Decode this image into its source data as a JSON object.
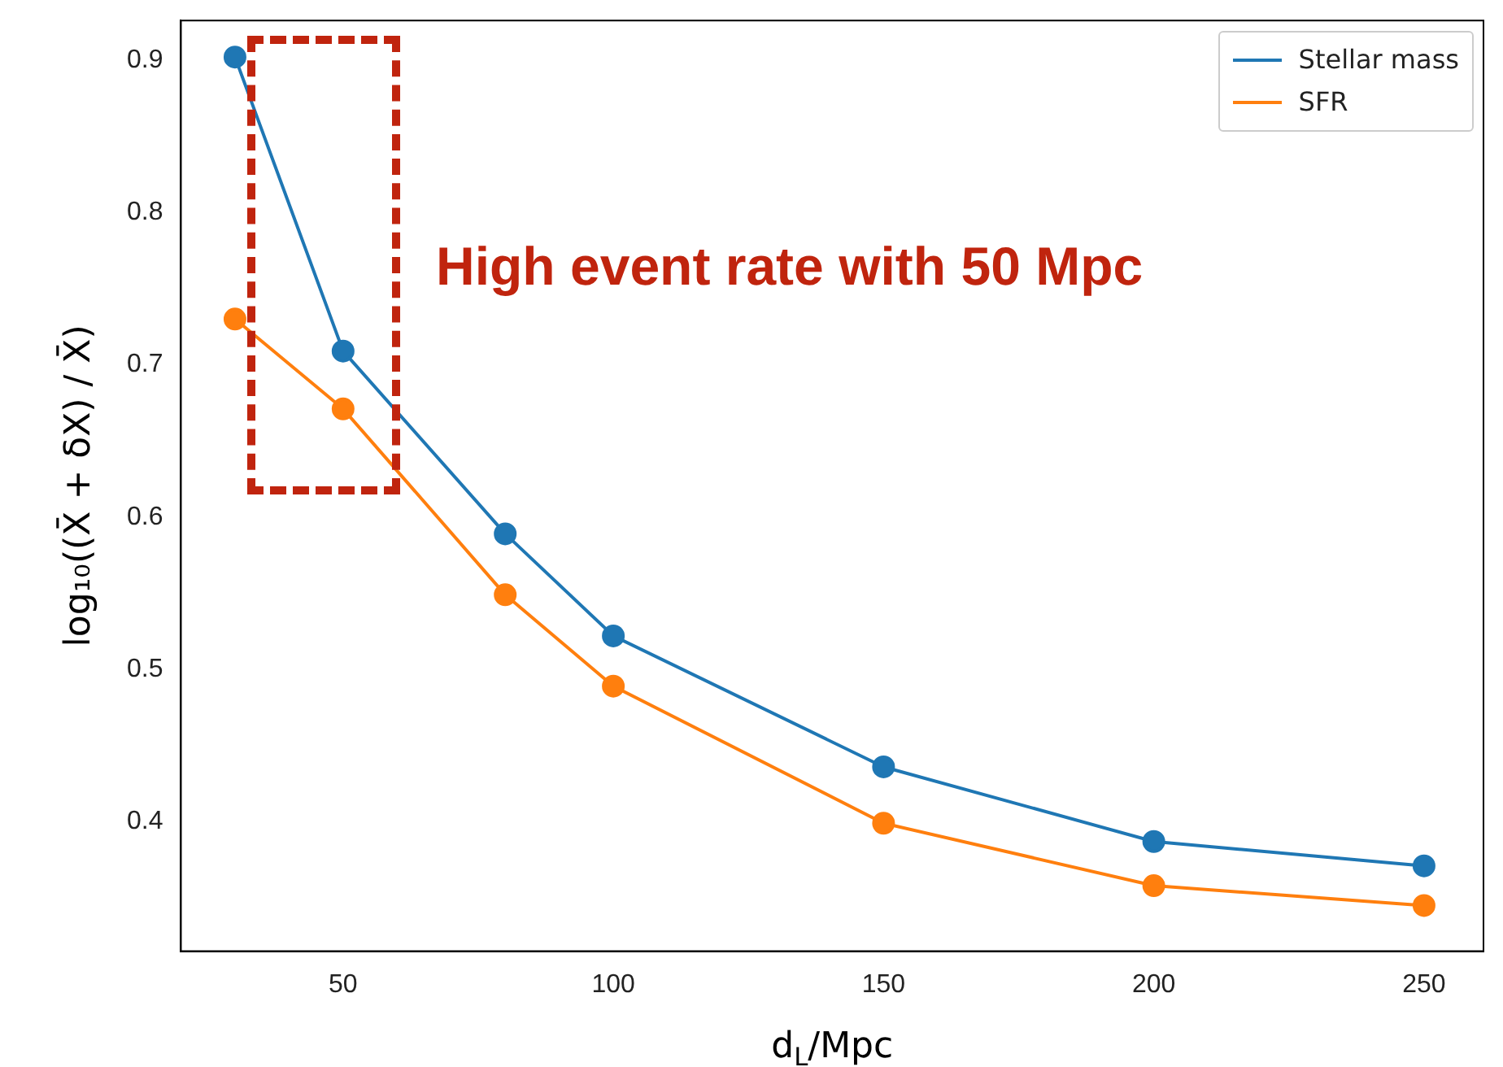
{
  "chart_data": {
    "type": "line",
    "xlabel": "d$_{L}$/Mpc",
    "ylabel": "log₁₀((X̄ + δX) / X̄)",
    "x": [
      30,
      50,
      80,
      100,
      150,
      200,
      250
    ],
    "series": [
      {
        "name": "Stellar mass",
        "color": "#1f77b4",
        "values": [
          0.902,
          0.709,
          0.589,
          0.522,
          0.436,
          0.387,
          0.371
        ]
      },
      {
        "name": "SFR",
        "color": "#ff7f0e",
        "values": [
          0.73,
          0.671,
          0.549,
          0.489,
          0.399,
          0.358,
          0.345
        ]
      }
    ],
    "xlim": [
      20,
      261
    ],
    "xticks": [
      50,
      100,
      150,
      200,
      250
    ],
    "ylim": [
      0.315,
      0.926
    ],
    "yticks": [
      0.4,
      0.5,
      0.6,
      0.7,
      0.8,
      0.9
    ],
    "annotations": [
      "High event rate with 50 Mpc"
    ],
    "legend": "top right",
    "grid": false,
    "marker": "circle",
    "line_style": "solid"
  }
}
